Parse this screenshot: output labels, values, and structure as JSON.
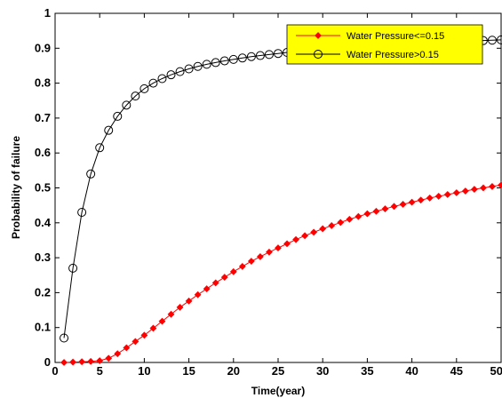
{
  "chart_data": {
    "type": "line",
    "xlabel": "Time(year)",
    "ylabel": "Probability of failure",
    "xlim": [
      0,
      50
    ],
    "ylim": [
      0,
      1
    ],
    "xticks": [
      0,
      5,
      10,
      15,
      20,
      25,
      30,
      35,
      40,
      45,
      50
    ],
    "yticks": [
      0,
      0.1,
      0.2,
      0.3,
      0.4,
      0.5,
      0.6,
      0.7,
      0.8,
      0.9,
      1
    ],
    "grid": false,
    "legend_position": "top-right",
    "legend_background": "#ffff00",
    "x": [
      1,
      2,
      3,
      4,
      5,
      6,
      7,
      8,
      9,
      10,
      11,
      12,
      13,
      14,
      15,
      16,
      17,
      18,
      19,
      20,
      21,
      22,
      23,
      24,
      25,
      26,
      27,
      28,
      29,
      30,
      31,
      32,
      33,
      34,
      35,
      36,
      37,
      38,
      39,
      40,
      41,
      42,
      43,
      44,
      45,
      46,
      47,
      48,
      49,
      50
    ],
    "series": [
      {
        "name": "Water Pressure<=0.15",
        "color": "#ff0000",
        "marker": "filled-diamond",
        "values": [
          0,
          0.001,
          0.002,
          0.003,
          0.005,
          0.012,
          0.025,
          0.042,
          0.06,
          0.078,
          0.098,
          0.118,
          0.138,
          0.158,
          0.176,
          0.194,
          0.211,
          0.228,
          0.244,
          0.26,
          0.275,
          0.29,
          0.303,
          0.316,
          0.328,
          0.34,
          0.352,
          0.363,
          0.373,
          0.383,
          0.392,
          0.401,
          0.41,
          0.418,
          0.426,
          0.433,
          0.44,
          0.447,
          0.453,
          0.459,
          0.465,
          0.471,
          0.476,
          0.481,
          0.486,
          0.491,
          0.496,
          0.5,
          0.504,
          0.508
        ]
      },
      {
        "name": "Water Pressure>0.15",
        "color": "#000000",
        "marker": "open-circle",
        "values": [
          0.07,
          0.27,
          0.43,
          0.54,
          0.615,
          0.665,
          0.705,
          0.737,
          0.763,
          0.784,
          0.8,
          0.813,
          0.824,
          0.833,
          0.841,
          0.848,
          0.854,
          0.859,
          0.864,
          0.868,
          0.872,
          0.876,
          0.879,
          0.882,
          0.885,
          0.888,
          0.891,
          0.893,
          0.895,
          0.897,
          0.899,
          0.901,
          0.903,
          0.905,
          0.906,
          0.908,
          0.909,
          0.911,
          0.912,
          0.913,
          0.915,
          0.916,
          0.917,
          0.918,
          0.919,
          0.92,
          0.921,
          0.922,
          0.923,
          0.924
        ]
      }
    ]
  }
}
